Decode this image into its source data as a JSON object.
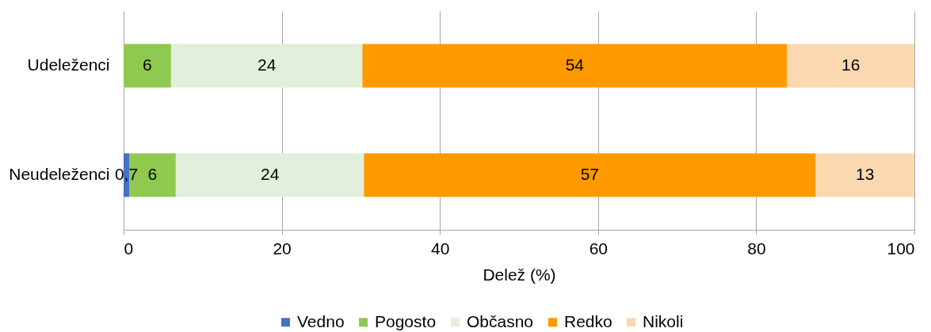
{
  "chart_data": {
    "type": "bar",
    "orientation": "horizontal",
    "stacked": true,
    "categories": [
      "Udeleženci",
      "Neudeleženci"
    ],
    "xlabel": "Delež (%)",
    "xlim": [
      0,
      100
    ],
    "xticks": [
      0,
      20,
      40,
      60,
      80,
      100
    ],
    "grid": "x",
    "legend": "bottom",
    "series": [
      {
        "name": "Vedno",
        "color": "#4472c4",
        "values": [
          null,
          0.7
        ],
        "value_labels": [
          null,
          "0,7"
        ]
      },
      {
        "name": "Pogosto",
        "color": "#8fc94f",
        "values": [
          6,
          5.9
        ],
        "value_labels": [
          "6",
          "6"
        ]
      },
      {
        "name": "Občasno",
        "color": "#e2efda",
        "values": [
          24.2,
          23.8
        ],
        "value_labels": [
          "24",
          "24"
        ]
      },
      {
        "name": "Redko",
        "color": "#ff9900",
        "values": [
          53.7,
          57.1
        ],
        "value_labels": [
          "54",
          "57"
        ]
      },
      {
        "name": "Nikoli",
        "color": "#fcd8b0",
        "values": [
          16.1,
          12.5
        ],
        "value_labels": [
          "16",
          "13"
        ]
      }
    ]
  }
}
